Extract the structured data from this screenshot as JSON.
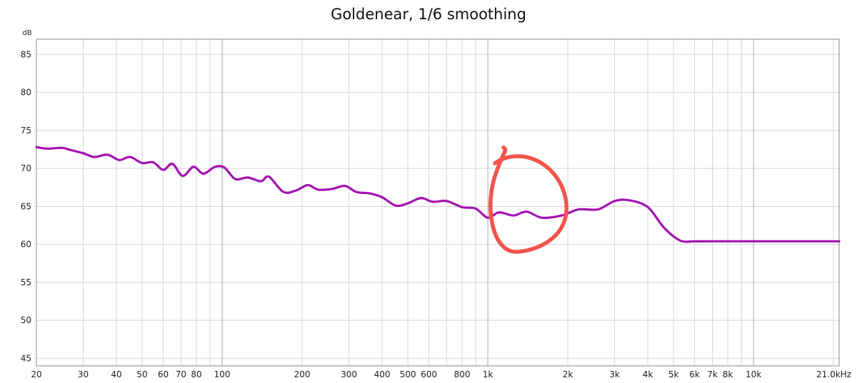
{
  "chart_data": {
    "type": "line",
    "title": "Goldenear, 1/6 smoothing",
    "ylabel": "dB",
    "xlabel": "",
    "x_scale": "log",
    "xlim": [
      20,
      21000
    ],
    "ylim": [
      44,
      87
    ],
    "grid": true,
    "x_tick_labels": [
      {
        "value": 20,
        "label": "20"
      },
      {
        "value": 30,
        "label": "30"
      },
      {
        "value": 40,
        "label": "40"
      },
      {
        "value": 50,
        "label": "50"
      },
      {
        "value": 60,
        "label": "60"
      },
      {
        "value": 70,
        "label": "70"
      },
      {
        "value": 80,
        "label": "80"
      },
      {
        "value": 100,
        "label": "100"
      },
      {
        "value": 200,
        "label": "200"
      },
      {
        "value": 300,
        "label": "300"
      },
      {
        "value": 400,
        "label": "400"
      },
      {
        "value": 500,
        "label": "500"
      },
      {
        "value": 600,
        "label": "600"
      },
      {
        "value": 800,
        "label": "800"
      },
      {
        "value": 1000,
        "label": "1k"
      },
      {
        "value": 2000,
        "label": "2k"
      },
      {
        "value": 3000,
        "label": "3k"
      },
      {
        "value": 4000,
        "label": "4k"
      },
      {
        "value": 5000,
        "label": "5k"
      },
      {
        "value": 6000,
        "label": "6k"
      },
      {
        "value": 7000,
        "label": "7k"
      },
      {
        "value": 8000,
        "label": "8k"
      },
      {
        "value": 10000,
        "label": "10k"
      },
      {
        "value": 21000,
        "label": "21.0kHz"
      }
    ],
    "x_gridlines_minor": [
      30,
      40,
      50,
      60,
      70,
      80,
      90,
      200,
      300,
      400,
      500,
      600,
      700,
      800,
      900,
      2000,
      3000,
      4000,
      5000,
      6000,
      7000,
      8000,
      9000,
      20000
    ],
    "x_gridlines_major": [
      100,
      1000,
      10000
    ],
    "y_ticks": [
      45,
      50,
      55,
      60,
      65,
      70,
      75,
      80,
      85
    ],
    "series": [
      {
        "color": "#a313b0",
        "x": [
          20,
          22,
          25,
          27,
          30,
          33,
          37,
          41,
          45,
          50,
          55,
          60,
          65,
          71,
          78,
          85,
          94,
          102,
          112,
          125,
          140,
          150,
          170,
          190,
          210,
          230,
          260,
          290,
          320,
          360,
          400,
          450,
          500,
          560,
          620,
          700,
          800,
          900,
          1000,
          1100,
          1250,
          1400,
          1600,
          1900,
          2200,
          2600,
          3000,
          3400,
          4000,
          4600,
          5300,
          6000,
          6800,
          7800,
          9000,
          10200,
          11500,
          13000,
          15000,
          17000,
          19000,
          21000
        ],
        "y": [
          72.8,
          72.6,
          72.7,
          72.4,
          72.0,
          71.5,
          71.8,
          71.1,
          71.5,
          70.7,
          70.8,
          69.8,
          70.6,
          69.0,
          70.2,
          69.3,
          70.2,
          70.1,
          68.6,
          68.8,
          68.3,
          68.9,
          66.9,
          67.1,
          67.8,
          67.2,
          67.3,
          67.7,
          66.9,
          66.7,
          66.2,
          65.1,
          65.4,
          66.1,
          65.6,
          65.7,
          64.9,
          64.7,
          63.5,
          64.2,
          63.8,
          64.3,
          63.5,
          63.8,
          64.6,
          64.6,
          65.7,
          65.8,
          64.9,
          62.2,
          60.5,
          60.4,
          60.4,
          60.4,
          60.4,
          60.4,
          60.4,
          60.4,
          60.4,
          60.4,
          60.4,
          60.4
        ]
      }
    ],
    "annotation": {
      "type": "hand-drawn-circle",
      "color": "#f2534d",
      "encloses_x_range": [
        1000,
        2000
      ]
    }
  }
}
